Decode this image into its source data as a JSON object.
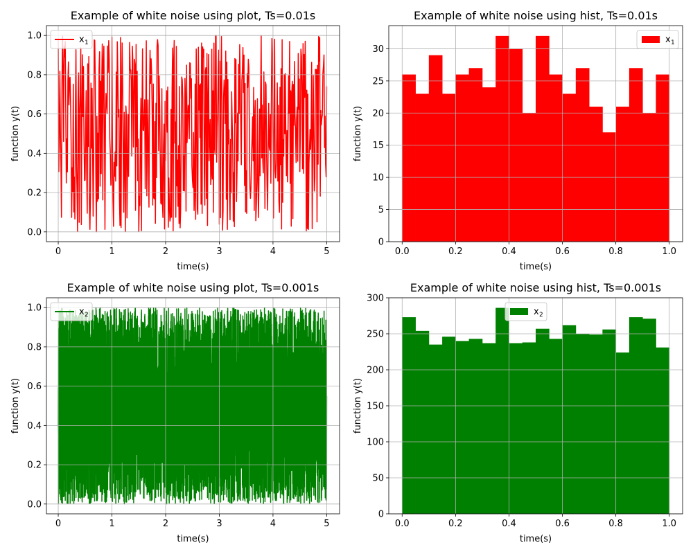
{
  "colors": {
    "red": "#ff0000",
    "green": "#008000",
    "grid": "#b0b0b0"
  },
  "chart_data": [
    {
      "type": "line",
      "title": "Example of white noise using plot, Ts=0.01s",
      "xlabel": "time(s)",
      "ylabel": "function y(t)",
      "xlim": [
        -0.22,
        5.24
      ],
      "ylim": [
        -0.05,
        1.05
      ],
      "xticks": [
        0,
        1,
        2,
        3,
        4,
        5
      ],
      "xtick_labels": [
        "0",
        "1",
        "2",
        "3",
        "4",
        "5"
      ],
      "yticks": [
        0.0,
        0.2,
        0.4,
        0.6,
        0.8,
        1.0
      ],
      "ytick_labels": [
        "0.0",
        "0.2",
        "0.4",
        "0.6",
        "0.8",
        "1.0"
      ],
      "grid": true,
      "legend": {
        "placement": "upper-left",
        "label": "x",
        "subscript": "1"
      },
      "series": [
        {
          "color": "#ff0000",
          "x_start": 0,
          "x_end": 5,
          "step": 0.01,
          "y_min": 0,
          "y_max": 1
        }
      ]
    },
    {
      "type": "bar",
      "title": "Example of white noise using hist, Ts=0.01s",
      "xlabel": "time(s)",
      "ylabel": "function y(t)",
      "xlim": [
        -0.05,
        1.05
      ],
      "ylim": [
        0,
        33.6
      ],
      "xticks": [
        0,
        0.2,
        0.4,
        0.6,
        0.8,
        1.0
      ],
      "xtick_labels": [
        "0.0",
        "0.2",
        "0.4",
        "0.6",
        "0.8",
        "1.0"
      ],
      "yticks": [
        0,
        5,
        10,
        15,
        20,
        25,
        30
      ],
      "ytick_labels": [
        "0",
        "5",
        "10",
        "15",
        "20",
        "25",
        "30"
      ],
      "grid": true,
      "legend": {
        "placement": "upper-right",
        "label": "x",
        "subscript": "1"
      },
      "bin_edges": [
        0,
        0.05,
        0.1,
        0.15,
        0.2,
        0.25,
        0.3,
        0.35,
        0.4,
        0.45,
        0.5,
        0.55,
        0.6,
        0.65,
        0.7,
        0.75,
        0.8,
        0.85,
        0.9,
        0.95,
        1.0
      ],
      "values": [
        26,
        23,
        29,
        23,
        26,
        27,
        24,
        32,
        30,
        20,
        32,
        26,
        23,
        27,
        21,
        17,
        21,
        27,
        20,
        26
      ],
      "color": "#ff0000"
    },
    {
      "type": "line",
      "title": "Example of white noise using plot, Ts=0.001s",
      "xlabel": "time(s)",
      "ylabel": "function y(t)",
      "xlim": [
        -0.22,
        5.24
      ],
      "ylim": [
        -0.05,
        1.05
      ],
      "xticks": [
        0,
        1,
        2,
        3,
        4,
        5
      ],
      "xtick_labels": [
        "0",
        "1",
        "2",
        "3",
        "4",
        "5"
      ],
      "yticks": [
        0.0,
        0.2,
        0.4,
        0.6,
        0.8,
        1.0
      ],
      "ytick_labels": [
        "0.0",
        "0.2",
        "0.4",
        "0.6",
        "0.8",
        "1.0"
      ],
      "grid": true,
      "legend": {
        "placement": "upper-left",
        "label": "x",
        "subscript": "2"
      },
      "series": [
        {
          "color": "#008000",
          "x_start": 0,
          "x_end": 5,
          "step": 0.001,
          "y_min": 0,
          "y_max": 1
        }
      ]
    },
    {
      "type": "bar",
      "title": "Example of white noise using hist, Ts=0.001s",
      "xlabel": "time(s)",
      "ylabel": "function y(t)",
      "xlim": [
        -0.05,
        1.05
      ],
      "ylim": [
        0,
        300
      ],
      "xticks": [
        0,
        0.2,
        0.4,
        0.6,
        0.8,
        1.0
      ],
      "xtick_labels": [
        "0.0",
        "0.2",
        "0.4",
        "0.6",
        "0.8",
        "1.0"
      ],
      "yticks": [
        0,
        50,
        100,
        150,
        200,
        250,
        300
      ],
      "ytick_labels": [
        "0",
        "50",
        "100",
        "150",
        "200",
        "250",
        "300"
      ],
      "grid": true,
      "legend": {
        "placement": "upper-center",
        "label": "x",
        "subscript": "2"
      },
      "bin_edges": [
        0,
        0.05,
        0.1,
        0.15,
        0.2,
        0.25,
        0.3,
        0.35,
        0.4,
        0.45,
        0.5,
        0.55,
        0.6,
        0.65,
        0.7,
        0.75,
        0.8,
        0.85,
        0.9,
        0.95,
        1.0
      ],
      "values": [
        273,
        254,
        235,
        246,
        240,
        243,
        237,
        286,
        237,
        238,
        257,
        243,
        262,
        250,
        249,
        256,
        224,
        273,
        271,
        231
      ],
      "color": "#008000"
    }
  ]
}
